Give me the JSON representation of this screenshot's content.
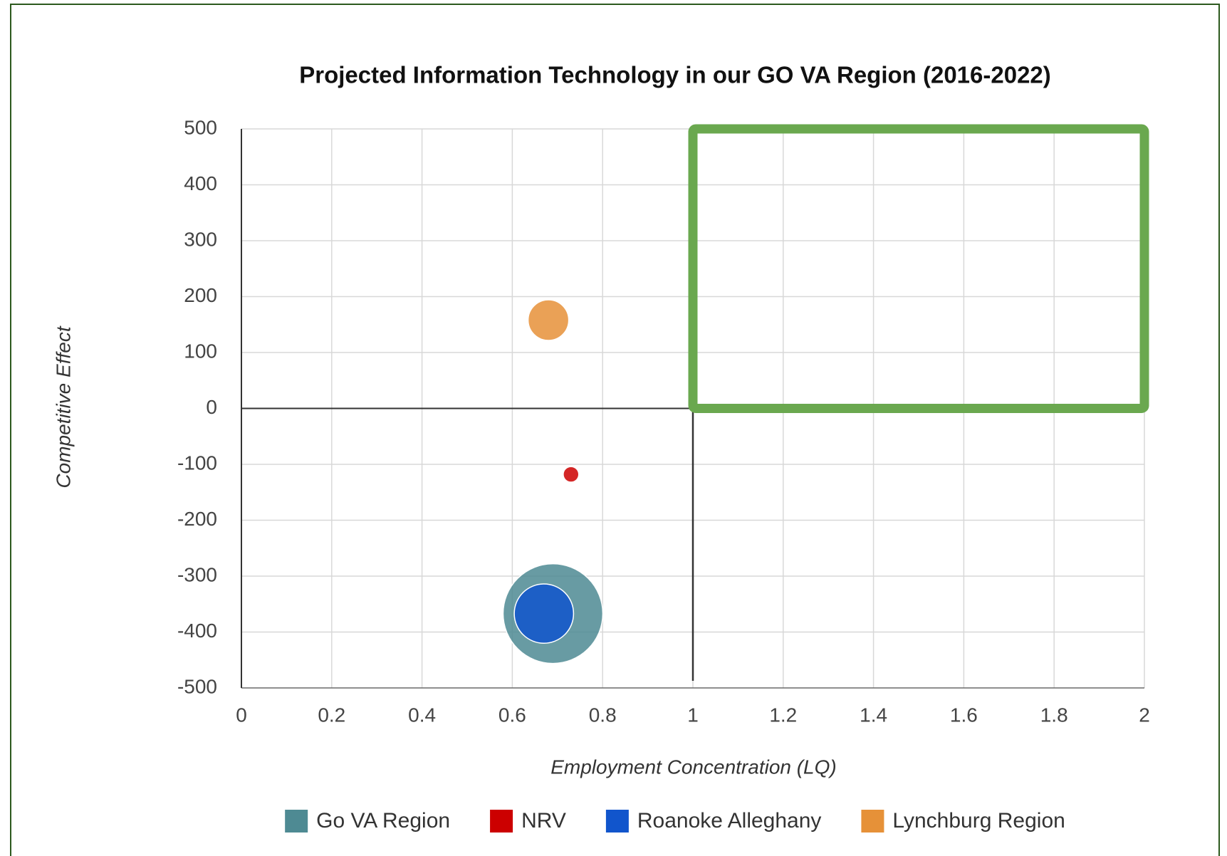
{
  "chart_data": {
    "type": "bubble",
    "title": "Projected Information Technology in our GO VA Region (2016-2022)",
    "x_label": "Employment Concentration (LQ)",
    "y_label": "Competitive Effect",
    "xlim": [
      0,
      2
    ],
    "ylim": [
      -500,
      500
    ],
    "xticks": [
      0,
      0.2,
      0.4,
      0.6,
      0.8,
      1,
      1.2,
      1.4,
      1.6,
      1.8,
      2
    ],
    "yticks": [
      -500,
      -400,
      -300,
      -200,
      -100,
      0,
      100,
      200,
      300,
      400,
      500
    ],
    "grid": true,
    "legend": "bottom",
    "series": [
      {
        "name": "Go VA Region",
        "color": "#4e8a93",
        "x": [
          0.69
        ],
        "values": [
          -367
        ],
        "sizes": [
          4100
        ]
      },
      {
        "name": "NRV",
        "color": "#cc0000",
        "x": [
          0.73
        ],
        "values": [
          -118
        ],
        "sizes": [
          100
        ]
      },
      {
        "name": "Roanoke Alleghany",
        "color": "#1155cc",
        "x": [
          0.67
        ],
        "values": [
          -367
        ],
        "sizes": [
          1450
        ]
      },
      {
        "name": "Lynchburg Region",
        "color": "#e69138",
        "x": [
          0.68
        ],
        "values": [
          158
        ],
        "sizes": [
          680
        ]
      }
    ],
    "reference_x": 1,
    "reference_y": 0,
    "highlight": {
      "xlim": [
        1,
        2
      ],
      "ylim": [
        0,
        500
      ],
      "color": "#6aa84f"
    }
  }
}
